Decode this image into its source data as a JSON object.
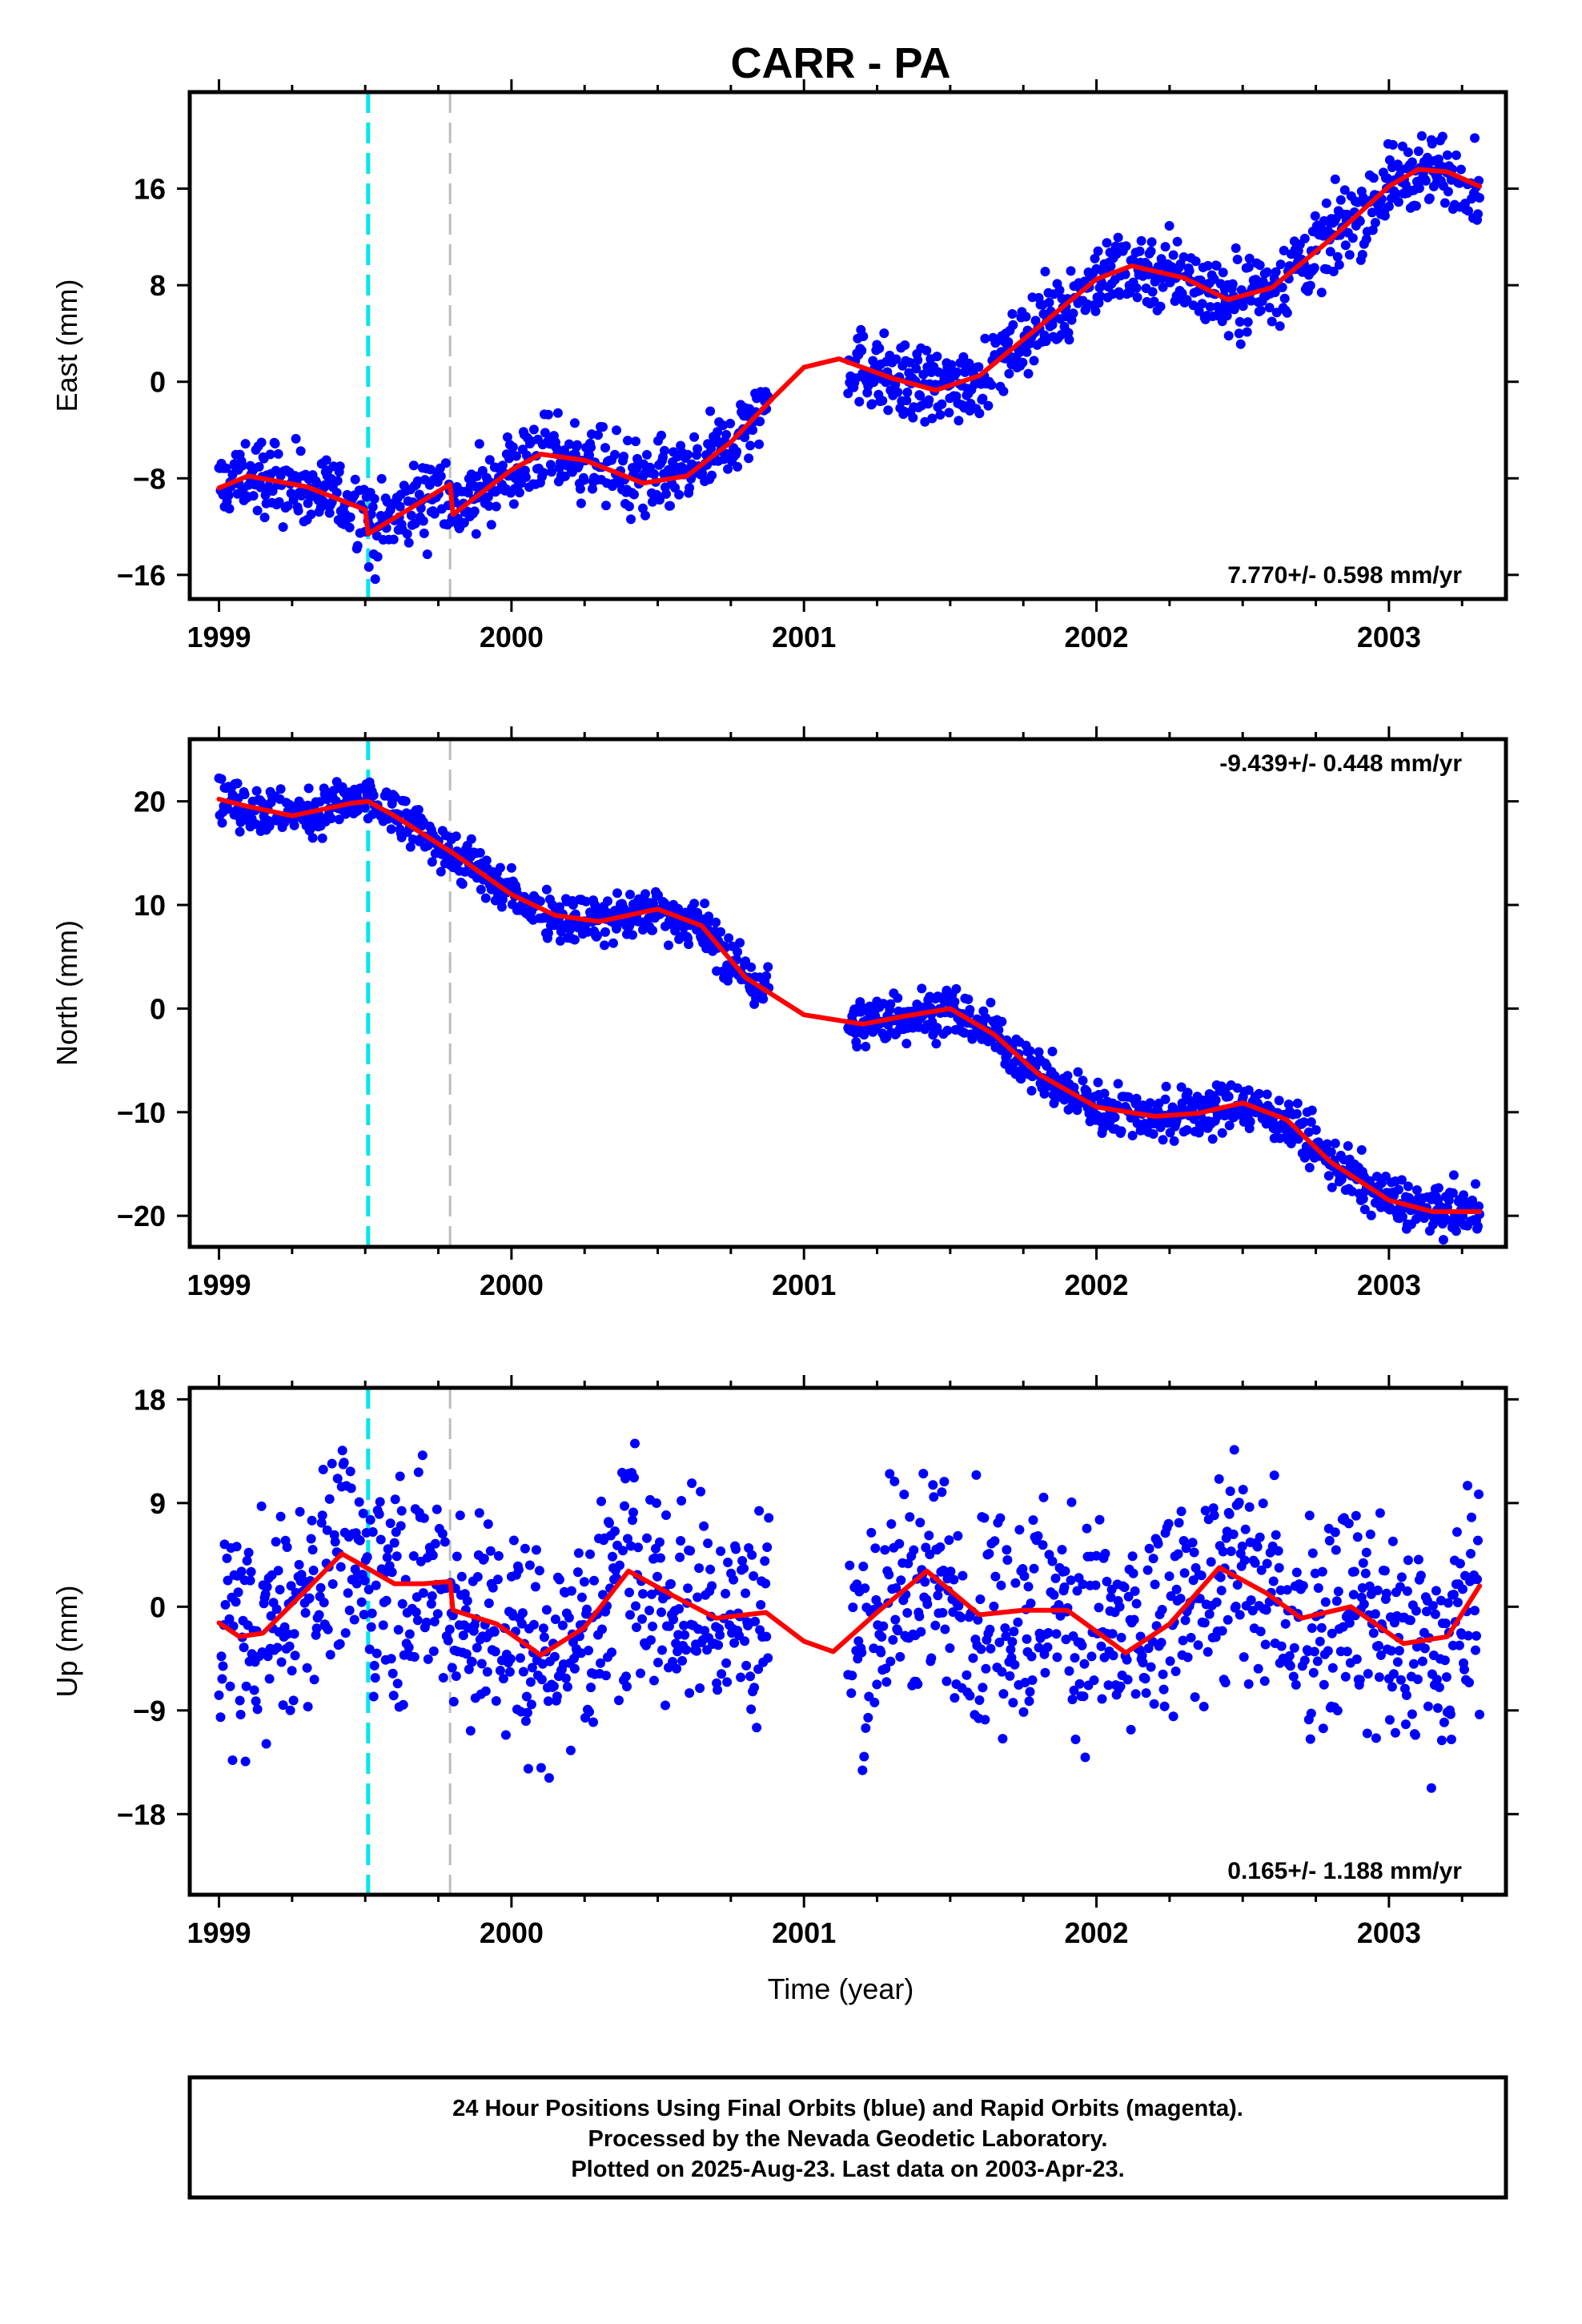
{
  "title": "CARR - PA",
  "xlabel": "Time (year)",
  "x_tick_labels": [
    "1999",
    "2000",
    "2001",
    "2002",
    "2003"
  ],
  "colors": {
    "points": "#0000ff",
    "fit": "#ff0000",
    "event_cyan": "#00e5ee",
    "event_gray": "#bdbdbd",
    "frame": "#000000"
  },
  "footer": {
    "line1": "24 Hour Positions Using Final Orbits (blue) and Rapid Orbits (magenta).",
    "line2": "Processed by the Nevada Geodetic Laboratory.",
    "line3": "Plotted on 2025-Aug-23. Last data on 2003-Apr-23."
  },
  "chart_data": [
    {
      "type": "scatter",
      "component": "east",
      "ylabel": "East (mm)",
      "rate_text": "7.770+/- 0.598 mm/yr",
      "rate_position": "bottom-right",
      "xlim": [
        1998.9,
        2003.4
      ],
      "ylim": [
        -18,
        24
      ],
      "yticks": [
        -16,
        -8,
        0,
        8,
        16
      ],
      "ytick_labels": [
        "−16",
        "−8",
        "0",
        "8",
        "16"
      ],
      "event_lines": [
        1999.51,
        1999.79
      ],
      "data_range": [
        1999.0,
        2003.31
      ],
      "gap": [
        2000.88,
        2001.15
      ],
      "point_spread": 1.6,
      "fit_curve": {
        "x": [
          1999.0,
          1999.1,
          1999.3,
          1999.5,
          1999.51,
          1999.79,
          1999.8,
          2000.0,
          2000.1,
          2000.25,
          2000.45,
          2000.6,
          2000.75,
          2000.9,
          2001.0,
          2001.12,
          2001.3,
          2001.45,
          2001.6,
          2001.8,
          2002.0,
          2002.12,
          2002.3,
          2002.45,
          2002.6,
          2002.8,
          2003.0,
          2003.1,
          2003.2,
          2003.31
        ],
        "y": [
          -8.8,
          -7.8,
          -8.7,
          -10.6,
          -12.6,
          -8.5,
          -11.0,
          -7.3,
          -6.0,
          -6.5,
          -8.4,
          -7.8,
          -5.0,
          -1.2,
          1.2,
          1.9,
          0.3,
          -0.7,
          0.5,
          4.5,
          8.5,
          9.6,
          8.6,
          6.8,
          7.8,
          11.8,
          16.2,
          17.6,
          17.4,
          16.2
        ]
      }
    },
    {
      "type": "scatter",
      "component": "north",
      "ylabel": "North (mm)",
      "rate_text": "-9.439+/- 0.448 mm/yr",
      "rate_position": "top-right",
      "xlim": [
        1998.9,
        2003.4
      ],
      "ylim": [
        -23,
        26
      ],
      "yticks": [
        -20,
        -10,
        0,
        10,
        20
      ],
      "ytick_labels": [
        "−20",
        "−10",
        "0",
        "10",
        "20"
      ],
      "event_lines": [
        1999.51,
        1999.79
      ],
      "data_range": [
        1999.0,
        2003.31
      ],
      "gap": [
        2000.88,
        2001.15
      ],
      "point_spread": 1.2,
      "fit_curve": {
        "x": [
          1999.0,
          1999.1,
          1999.25,
          1999.45,
          1999.51,
          1999.6,
          1999.8,
          2000.0,
          2000.15,
          2000.3,
          2000.5,
          2000.65,
          2000.8,
          2001.0,
          2001.2,
          2001.35,
          2001.5,
          2001.65,
          2001.8,
          2002.0,
          2002.2,
          2002.35,
          2002.5,
          2002.65,
          2002.8,
          2003.0,
          2003.15,
          2003.31
        ],
        "y": [
          20.2,
          19.5,
          18.6,
          19.8,
          20.0,
          18.6,
          15.0,
          11.0,
          9.0,
          8.4,
          9.6,
          8.0,
          3.0,
          -0.6,
          -1.5,
          -0.7,
          0.0,
          -2.5,
          -6.3,
          -9.5,
          -10.4,
          -10.1,
          -9.1,
          -10.7,
          -14.8,
          -18.5,
          -19.6,
          -19.6
        ]
      }
    },
    {
      "type": "scatter",
      "component": "up",
      "ylabel": "Up (mm)",
      "rate_text": "0.165+/- 1.188 mm/yr",
      "rate_position": "bottom-right",
      "xlim": [
        1998.9,
        2003.4
      ],
      "ylim": [
        -25,
        19
      ],
      "yticks": [
        -18,
        -9,
        0,
        9,
        18
      ],
      "ytick_labels": [
        "−18",
        "−9",
        "0",
        "9",
        "18"
      ],
      "event_lines": [
        1999.51,
        1999.79
      ],
      "data_range": [
        1999.0,
        2003.31
      ],
      "gap": [
        2000.88,
        2001.15
      ],
      "point_spread": 5.0,
      "fit_curve": {
        "x": [
          1999.0,
          1999.07,
          1999.15,
          1999.3,
          1999.42,
          1999.51,
          1999.6,
          1999.7,
          1999.79,
          1999.8,
          1999.95,
          2000.1,
          2000.25,
          2000.4,
          2000.55,
          2000.7,
          2000.87,
          2001.0,
          2001.1,
          2001.25,
          2001.42,
          2001.6,
          2001.75,
          2001.9,
          2002.1,
          2002.25,
          2002.42,
          2002.58,
          2002.7,
          2002.87,
          2003.05,
          2003.2,
          2003.31
        ],
        "y": [
          -1.4,
          -2.6,
          -2.3,
          1.5,
          4.6,
          3.3,
          2.0,
          2.0,
          2.2,
          -0.3,
          -1.5,
          -4.2,
          -1.8,
          3.1,
          1.0,
          -1.0,
          -0.5,
          -3.0,
          -3.9,
          -0.5,
          3.1,
          -0.7,
          -0.3,
          -0.3,
          -4.0,
          -1.5,
          3.4,
          1.2,
          -1.0,
          0.0,
          -3.2,
          -2.6,
          1.8
        ]
      }
    }
  ]
}
